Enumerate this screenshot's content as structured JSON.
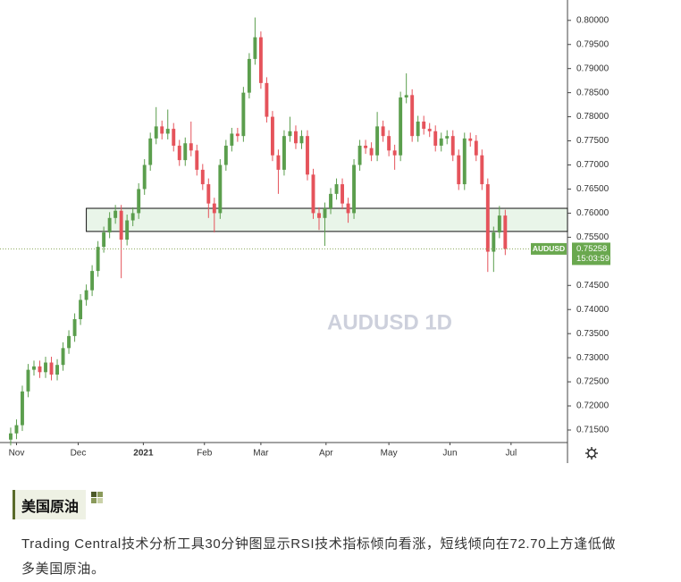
{
  "chart_data": {
    "type": "candlestick",
    "watermark": "AUDUSD 1D",
    "xlim": [
      -0.3,
      95.7
    ],
    "ylim": [
      0.7124,
      0.8033
    ],
    "xticks": [
      {
        "value": 1,
        "label": "Nov"
      },
      {
        "value": 11.6,
        "label": "Dec"
      },
      {
        "value": 22.8,
        "label": "2021"
      },
      {
        "value": 33.3,
        "label": "Feb"
      },
      {
        "value": 43,
        "label": "Mar"
      },
      {
        "value": 54.2,
        "label": "Apr"
      },
      {
        "value": 65,
        "label": "May"
      },
      {
        "value": 75.5,
        "label": "Jun"
      },
      {
        "value": 86,
        "label": "Jul"
      }
    ],
    "yticks": [
      {
        "value": 0.8,
        "label": "0.80000"
      },
      {
        "value": 0.795,
        "label": "0.79500"
      },
      {
        "value": 0.79,
        "label": "0.79000"
      },
      {
        "value": 0.785,
        "label": "0.78500"
      },
      {
        "value": 0.78,
        "label": "0.78000"
      },
      {
        "value": 0.775,
        "label": "0.77500"
      },
      {
        "value": 0.77,
        "label": "0.77000"
      },
      {
        "value": 0.765,
        "label": "0.76500"
      },
      {
        "value": 0.76,
        "label": "0.76000"
      },
      {
        "value": 0.755,
        "label": "0.75500"
      },
      {
        "value": 0.745,
        "label": "0.74500"
      },
      {
        "value": 0.74,
        "label": "0.74000"
      },
      {
        "value": 0.735,
        "label": "0.73500"
      },
      {
        "value": 0.73,
        "label": "0.73000"
      },
      {
        "value": 0.725,
        "label": "0.72500"
      },
      {
        "value": 0.72,
        "label": "0.72000"
      },
      {
        "value": 0.715,
        "label": "0.71500"
      }
    ],
    "up_color": "#5b9e4d",
    "down_color": "#e5535b",
    "zone": {
      "from_x": 13,
      "low": 0.7562,
      "high": 0.761,
      "color": "#e3f2e3"
    },
    "last_price": {
      "symbol": "AUDUSD",
      "value": 0.75258,
      "countdown": "15:03:59",
      "color": "#6aa84f"
    },
    "series": [
      {
        "open": [
          0.713,
          0.7143,
          0.716,
          0.723,
          0.7275,
          0.7282,
          0.727,
          0.729,
          0.7265,
          0.7285,
          0.732,
          0.7345,
          0.738,
          0.742,
          0.744,
          0.748,
          0.753,
          0.756,
          0.759,
          0.7605,
          0.7545,
          0.7585,
          0.76,
          0.765,
          0.77,
          0.7755,
          0.778,
          0.7765,
          0.7775,
          0.774,
          0.771,
          0.7745,
          0.773,
          0.769,
          0.766,
          0.762,
          0.76,
          0.77,
          0.774,
          0.7765,
          0.776,
          0.785,
          0.792,
          0.7965,
          0.787,
          0.78,
          0.772,
          0.769,
          0.776,
          0.777,
          0.7745,
          0.776,
          0.768,
          0.76,
          0.759,
          0.761,
          0.764,
          0.766,
          0.762,
          0.76,
          0.77,
          0.774,
          0.7735,
          0.772,
          0.778,
          0.776,
          0.773,
          0.772,
          0.784,
          0.7845,
          0.776,
          0.779,
          0.7775,
          0.777,
          0.774,
          0.7755,
          0.776,
          0.772,
          0.766,
          0.7755,
          0.775,
          0.772,
          0.766,
          0.752,
          0.756,
          0.7595
        ],
        "high": [
          0.7155,
          0.7172,
          0.7242,
          0.7287,
          0.7294,
          0.7294,
          0.7302,
          0.7302,
          0.7297,
          0.7332,
          0.7357,
          0.7392,
          0.7432,
          0.7452,
          0.7492,
          0.7542,
          0.7572,
          0.7602,
          0.7617,
          0.7617,
          0.7597,
          0.7612,
          0.7662,
          0.7712,
          0.7767,
          0.782,
          0.7792,
          0.7815,
          0.7787,
          0.7752,
          0.7757,
          0.779,
          0.7742,
          0.7702,
          0.7672,
          0.7632,
          0.7712,
          0.7752,
          0.7777,
          0.7777,
          0.7862,
          0.7932,
          0.8006,
          0.7977,
          0.7882,
          0.7812,
          0.7732,
          0.7772,
          0.78,
          0.7782,
          0.7772,
          0.7772,
          0.7692,
          0.7612,
          0.7622,
          0.7652,
          0.7672,
          0.7672,
          0.7632,
          0.7712,
          0.7752,
          0.7752,
          0.7747,
          0.781,
          0.7792,
          0.7772,
          0.7742,
          0.7852,
          0.789,
          0.7857,
          0.7802,
          0.7802,
          0.7787,
          0.7782,
          0.7767,
          0.7772,
          0.7772,
          0.7732,
          0.7767,
          0.7767,
          0.7762,
          0.7732,
          0.7672,
          0.7572,
          0.7615,
          0.7607
        ],
        "low": [
          0.7118,
          0.7131,
          0.7148,
          0.7218,
          0.7263,
          0.7258,
          0.7258,
          0.7253,
          0.7253,
          0.7273,
          0.7308,
          0.7333,
          0.7368,
          0.7408,
          0.7428,
          0.7468,
          0.7518,
          0.7548,
          0.7578,
          0.7465,
          0.7533,
          0.7573,
          0.7588,
          0.7638,
          0.7688,
          0.7743,
          0.7753,
          0.7753,
          0.7728,
          0.7698,
          0.7698,
          0.7718,
          0.7678,
          0.7648,
          0.759,
          0.756,
          0.7588,
          0.7688,
          0.7728,
          0.7748,
          0.7748,
          0.7838,
          0.7908,
          0.7858,
          0.7788,
          0.7708,
          0.764,
          0.7678,
          0.7748,
          0.7733,
          0.7733,
          0.7668,
          0.7588,
          0.7565,
          0.7532,
          0.7598,
          0.7628,
          0.7608,
          0.758,
          0.7588,
          0.7688,
          0.7723,
          0.7708,
          0.7708,
          0.7748,
          0.7718,
          0.769,
          0.7708,
          0.7828,
          0.7748,
          0.7748,
          0.7763,
          0.7758,
          0.7728,
          0.7728,
          0.7743,
          0.7708,
          0.7648,
          0.7648,
          0.7738,
          0.7708,
          0.7648,
          0.7478,
          0.7478,
          0.7548,
          0.7513
        ],
        "close": [
          0.7143,
          0.716,
          0.723,
          0.7275,
          0.7282,
          0.727,
          0.729,
          0.7265,
          0.7285,
          0.732,
          0.7345,
          0.738,
          0.742,
          0.744,
          0.748,
          0.753,
          0.756,
          0.759,
          0.7605,
          0.7545,
          0.7585,
          0.76,
          0.765,
          0.77,
          0.7755,
          0.778,
          0.7765,
          0.7775,
          0.774,
          0.771,
          0.7745,
          0.773,
          0.769,
          0.766,
          0.762,
          0.76,
          0.77,
          0.774,
          0.7765,
          0.776,
          0.785,
          0.792,
          0.7965,
          0.787,
          0.78,
          0.772,
          0.769,
          0.776,
          0.777,
          0.7745,
          0.776,
          0.768,
          0.76,
          0.759,
          0.761,
          0.764,
          0.766,
          0.762,
          0.76,
          0.77,
          0.774,
          0.7735,
          0.772,
          0.778,
          0.776,
          0.773,
          0.772,
          0.784,
          0.7845,
          0.776,
          0.779,
          0.7775,
          0.777,
          0.774,
          0.7755,
          0.776,
          0.772,
          0.766,
          0.7755,
          0.775,
          0.772,
          0.766,
          0.752,
          0.756,
          0.7595,
          0.75258
        ]
      }
    ]
  },
  "article": {
    "heading": "美国原油",
    "body": "Trading Central技术分析工具30分钟图显示RSI技术指标倾向看涨，短线倾向在72.70上方逢低做多美国原油。"
  }
}
